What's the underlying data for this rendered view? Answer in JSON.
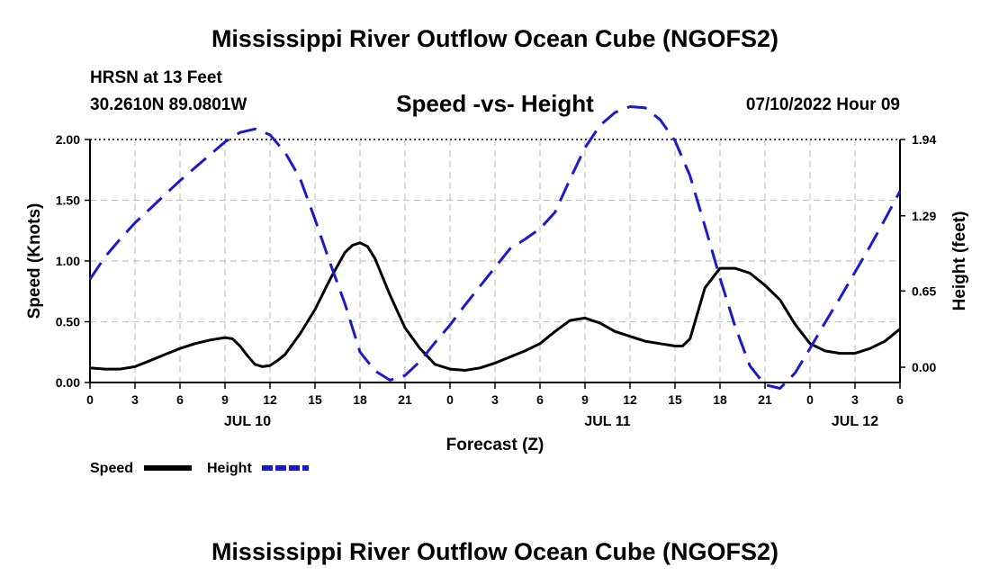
{
  "header": {
    "title": "Mississippi River Outflow Ocean Cube (NGOFS2)",
    "station": "HRSN at 13 Feet",
    "coords": "30.2610N  89.0801W",
    "subtitle": "Speed -vs- Height",
    "forecast_time": "07/10/2022 Hour 09"
  },
  "footer": {
    "title": "Mississippi River Outflow Ocean Cube (NGOFS2)"
  },
  "chart_data": {
    "type": "line",
    "title": "Speed -vs- Height",
    "xlabel": "Forecast (Z)",
    "ylabel": "Speed (Knots)",
    "y2label": "Height (feet)",
    "xlim": [
      0,
      54
    ],
    "ylim": [
      0,
      2.0
    ],
    "y2lim": [
      -0.13,
      1.94
    ],
    "grid": true,
    "x_ticks": [
      0,
      3,
      6,
      9,
      12,
      15,
      18,
      21,
      24,
      27,
      30,
      33,
      36,
      39,
      42,
      45,
      48,
      51,
      54
    ],
    "x_tick_labels": [
      "0",
      "3",
      "6",
      "9",
      "12",
      "15",
      "18",
      "21",
      "0",
      "3",
      "6",
      "9",
      "12",
      "15",
      "18",
      "21",
      "0",
      "3",
      "6"
    ],
    "y_ticks": [
      0,
      0.5,
      1.0,
      1.5,
      2.0
    ],
    "y_tick_labels": [
      "0.00",
      "0.50",
      "1.00",
      "1.50",
      "2.00"
    ],
    "y2_ticks": [
      0,
      0.65,
      1.29,
      1.94
    ],
    "y2_tick_labels": [
      "0.00",
      "0.65",
      "1.29",
      "1.94"
    ],
    "day_labels": [
      {
        "x": 10.5,
        "label": "JUL 10"
      },
      {
        "x": 34.5,
        "label": "JUL 11"
      },
      {
        "x": 51,
        "label": "JUL 12"
      }
    ],
    "series": [
      {
        "name": "Speed",
        "axis": "left",
        "color": "#000000",
        "dash": "solid",
        "x": [
          0,
          1,
          2,
          3,
          4,
          5,
          6,
          7,
          8,
          9,
          9.5,
          10,
          10.5,
          11,
          11.5,
          12,
          12.5,
          13,
          14,
          15,
          16,
          17,
          17.5,
          18,
          18.5,
          19,
          20,
          21,
          22,
          23,
          24,
          25,
          26,
          27,
          28,
          29,
          30,
          31,
          32,
          33,
          34,
          35,
          36,
          37,
          38,
          39,
          39.5,
          40,
          41,
          42,
          43,
          44,
          45,
          46,
          47,
          48,
          49,
          50,
          51,
          52,
          53,
          54
        ],
        "values": [
          0.12,
          0.11,
          0.11,
          0.13,
          0.18,
          0.23,
          0.28,
          0.32,
          0.35,
          0.37,
          0.36,
          0.3,
          0.22,
          0.15,
          0.13,
          0.14,
          0.18,
          0.23,
          0.4,
          0.6,
          0.85,
          1.07,
          1.13,
          1.15,
          1.12,
          1.02,
          0.72,
          0.45,
          0.28,
          0.15,
          0.11,
          0.1,
          0.12,
          0.16,
          0.21,
          0.26,
          0.32,
          0.42,
          0.51,
          0.53,
          0.49,
          0.42,
          0.38,
          0.34,
          0.32,
          0.3,
          0.3,
          0.36,
          0.78,
          0.94,
          0.94,
          0.9,
          0.8,
          0.68,
          0.48,
          0.32,
          0.26,
          0.24,
          0.24,
          0.28,
          0.34,
          0.44
        ]
      },
      {
        "name": "Height",
        "axis": "right",
        "color": "#1a1acc",
        "dash": "dashed",
        "x": [
          0,
          1,
          2,
          3,
          4,
          5,
          6,
          7,
          8,
          9,
          10,
          11,
          12,
          13,
          14,
          15,
          16,
          17,
          18,
          19,
          20,
          21,
          22,
          23,
          24,
          25,
          26,
          27,
          28,
          29,
          30,
          31,
          32,
          33,
          34,
          35,
          36,
          37,
          38,
          39,
          40,
          41,
          42,
          43,
          44,
          45,
          46,
          47,
          48,
          49,
          50,
          51,
          52,
          53,
          54
        ],
        "values": [
          0.75,
          0.94,
          1.09,
          1.23,
          1.35,
          1.47,
          1.59,
          1.7,
          1.81,
          1.92,
          2.0,
          2.03,
          1.98,
          1.83,
          1.61,
          1.26,
          0.89,
          0.54,
          0.13,
          -0.03,
          -0.11,
          -0.07,
          0.05,
          0.21,
          0.36,
          0.53,
          0.69,
          0.85,
          1.01,
          1.09,
          1.18,
          1.32,
          1.6,
          1.87,
          2.06,
          2.17,
          2.22,
          2.21,
          2.11,
          1.93,
          1.63,
          1.2,
          0.76,
          0.35,
          0.01,
          -0.15,
          -0.18,
          -0.05,
          0.16,
          0.38,
          0.59,
          0.81,
          1.03,
          1.26,
          1.5
        ]
      }
    ],
    "legend": [
      {
        "label": "Speed",
        "color": "#000000",
        "dash": "solid"
      },
      {
        "label": "Height",
        "color": "#1a1acc",
        "dash": "dashed"
      }
    ]
  }
}
